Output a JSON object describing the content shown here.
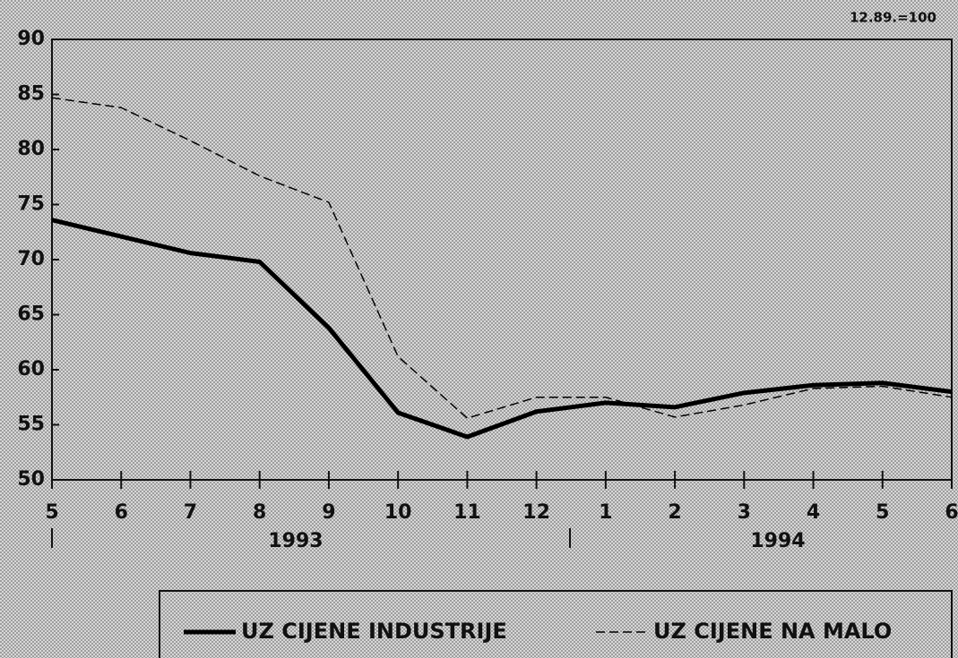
{
  "chart_data": {
    "type": "line",
    "note": "12.89.=100",
    "categories": [
      "5",
      "6",
      "7",
      "8",
      "9",
      "10",
      "11",
      "12",
      "1",
      "2",
      "3",
      "4",
      "5",
      "6"
    ],
    "year_labels": [
      "1993",
      "1994"
    ],
    "series": [
      {
        "name": "UZ CIJENE INDUSTRIJE",
        "color": "#000000",
        "style": "solid",
        "values": [
          73.6,
          72.1,
          70.6,
          69.8,
          63.8,
          56.1,
          53.9,
          56.2,
          57.0,
          56.6,
          57.9,
          58.6,
          58.8,
          58.0
        ]
      },
      {
        "name": "UZ CIJENE NA MALO",
        "color": "#000000",
        "style": "dashed",
        "values": [
          84.7,
          83.8,
          80.8,
          77.6,
          75.2,
          61.2,
          55.6,
          57.5,
          57.5,
          55.7,
          56.8,
          58.3,
          58.5,
          57.5
        ]
      }
    ],
    "ylim": [
      50,
      90
    ],
    "yticks": [
      50,
      55,
      60,
      65,
      70,
      75,
      80,
      85,
      90
    ],
    "grid": false
  }
}
